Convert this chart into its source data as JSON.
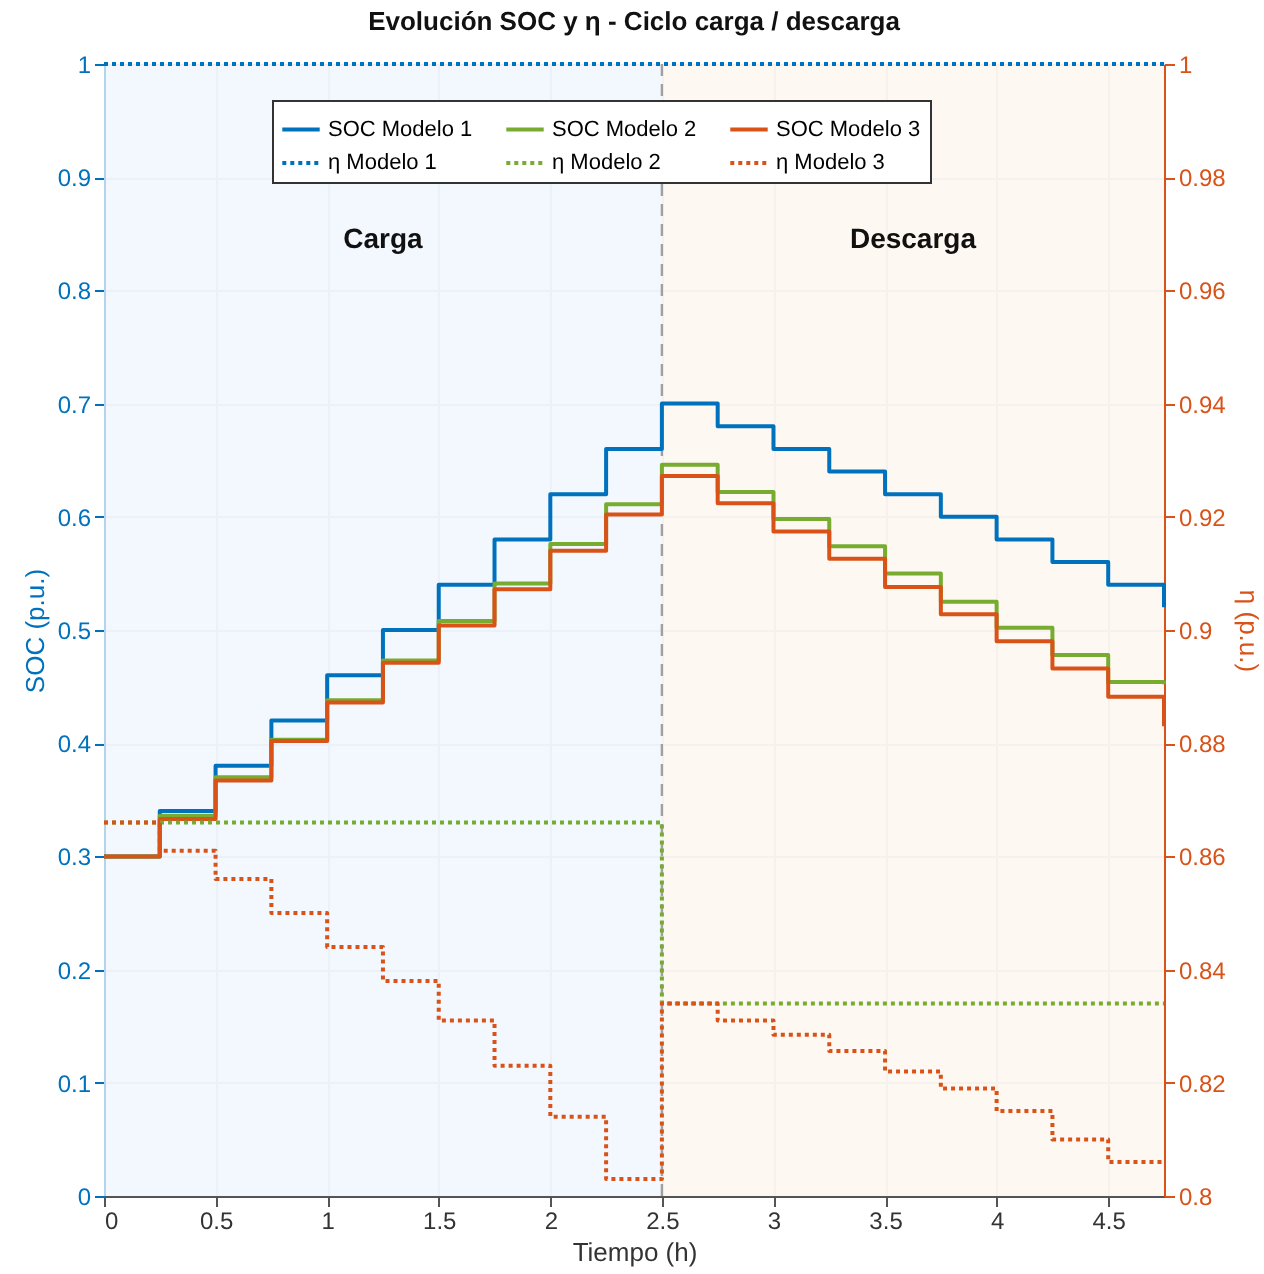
{
  "chart_data": {
    "type": "step",
    "title": "Evolución SOC y η - Ciclo carga / descarga",
    "xlabel": "Tiempo (h)",
    "ylabel": "SOC (p.u.)",
    "y2label": "η (p.u.)",
    "x": [
      0,
      0.25,
      0.5,
      0.75,
      1,
      1.25,
      1.5,
      1.75,
      2,
      2.25,
      2.5,
      2.75,
      3,
      3.25,
      3.5,
      3.75,
      4,
      4.25,
      4.5,
      4.75
    ],
    "xlim": [
      0,
      4.75
    ],
    "xticks": [
      0,
      0.5,
      1,
      1.5,
      2,
      2.5,
      3,
      3.5,
      4,
      4.5
    ],
    "ylim": [
      0,
      1
    ],
    "yticks": [
      0,
      0.1,
      0.2,
      0.3,
      0.4,
      0.5,
      0.6,
      0.7,
      0.8,
      0.9,
      1
    ],
    "y2lim": [
      0.8,
      1
    ],
    "y2ticks": [
      0.8,
      0.82,
      0.84,
      0.86,
      0.88,
      0.9,
      0.92,
      0.94,
      0.96,
      0.98,
      1
    ],
    "grid": true,
    "legend": "top",
    "marker": "none",
    "series": [
      {
        "name": "SOC Modelo 1",
        "color": "#0072bd",
        "line_style": "solid",
        "values": [
          0.3,
          0.34,
          0.38,
          0.42,
          0.46,
          0.5,
          0.54,
          0.58,
          0.62,
          0.66,
          0.7,
          0.68,
          0.66,
          0.64,
          0.62,
          0.6,
          0.58,
          0.56,
          0.54,
          0.52
        ]
      },
      {
        "name": "SOC Modelo 2",
        "color": "#77ac30",
        "line_style": "solid",
        "values": [
          0.3,
          0.336,
          0.37,
          0.403,
          0.438,
          0.473,
          0.508,
          0.541,
          0.576,
          0.611,
          0.646,
          0.622,
          0.598,
          0.574,
          0.55,
          0.525,
          0.502,
          0.478,
          0.454,
          0.452
        ]
      },
      {
        "name": "SOC Modelo 3",
        "color": "#d95319",
        "line_style": "solid",
        "values": [
          0.3,
          0.333,
          0.367,
          0.402,
          0.436,
          0.471,
          0.504,
          0.536,
          0.57,
          0.602,
          0.636,
          0.612,
          0.587,
          0.563,
          0.538,
          0.514,
          0.49,
          0.466,
          0.441,
          0.415
        ]
      },
      {
        "name": "η Modelo 1",
        "color": "#0072bd",
        "line_style": "dotted",
        "axis": "y2",
        "values": [
          1,
          1,
          1,
          1,
          1,
          1,
          1,
          1,
          1,
          1,
          1,
          1,
          1,
          1,
          1,
          1,
          1,
          1,
          1,
          1
        ]
      },
      {
        "name": "η Modelo 2",
        "color": "#77ac30",
        "line_style": "dotted",
        "axis": "y2",
        "values": [
          0.866,
          0.866,
          0.866,
          0.866,
          0.866,
          0.866,
          0.866,
          0.866,
          0.866,
          0.866,
          0.834,
          0.834,
          0.834,
          0.834,
          0.834,
          0.834,
          0.834,
          0.834,
          0.834,
          0.834
        ]
      },
      {
        "name": "η Modelo 3",
        "color": "#d95319",
        "line_style": "dotted",
        "axis": "y2",
        "values": [
          0.866,
          0.861,
          0.856,
          0.85,
          0.844,
          0.838,
          0.831,
          0.823,
          0.814,
          0.803,
          0.834,
          0.831,
          0.8285,
          0.8256,
          0.822,
          0.819,
          0.815,
          0.81,
          0.806,
          0.806
        ]
      }
    ],
    "bands": [
      {
        "axis": "x",
        "from": 0,
        "to": 2.5,
        "label": "Carga",
        "color": "#eef5fd"
      },
      {
        "axis": "x",
        "from": 2.5,
        "to": 4.75,
        "label": "Descarga",
        "color": "#fef5ee"
      }
    ],
    "ref_lines": [
      {
        "axis": "x",
        "value": 2.5,
        "color": "#a0a0a0",
        "line_style": "dashed"
      }
    ]
  }
}
